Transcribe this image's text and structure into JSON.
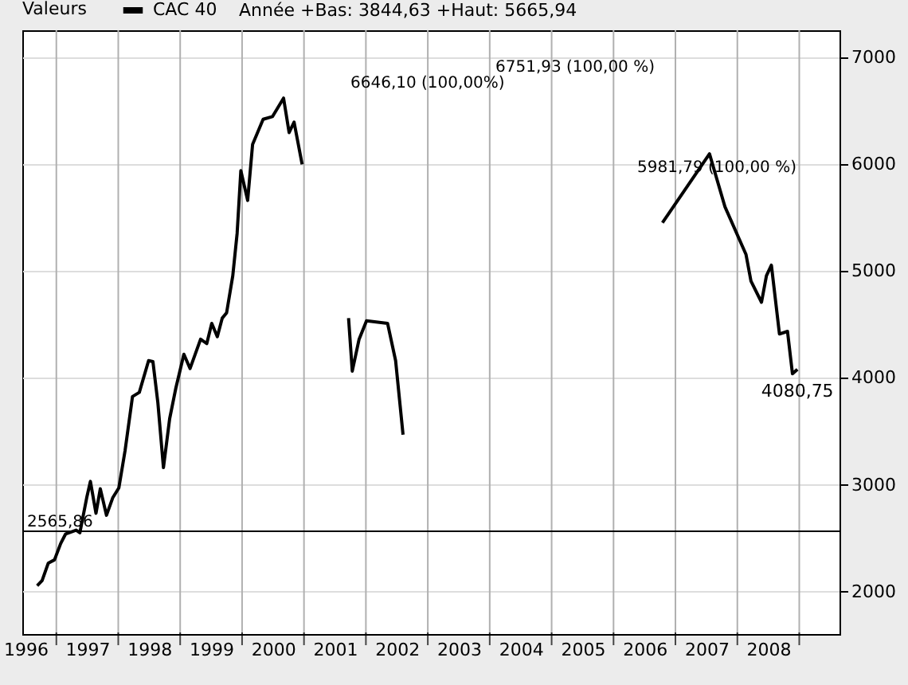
{
  "chart_data": {
    "type": "line",
    "legend_title": "Valeurs",
    "legend": "top left",
    "annotations": [
      "Année +Bas: 3844,63 +Haut: 5665,94",
      "6646,10 (100,00%)",
      "6751,93 (100,00 %)",
      "5981,79 (100,00 %)"
    ],
    "series": [
      {
        "name": "CAC 40",
        "color": "#000000",
        "x": [
          1996.69,
          1996.77,
          1996.87,
          1996.97,
          1997.07,
          1997.15,
          1997.32,
          1997.38,
          1997.49,
          1997.55,
          1997.64,
          1997.71,
          1997.81,
          1997.91,
          1998.01,
          1998.11,
          1998.23,
          1998.34,
          1998.49,
          1998.56,
          1998.64,
          1998.73,
          1998.83,
          1998.93,
          1999.06,
          1999.16,
          1999.33,
          1999.43,
          1999.51,
          1999.6,
          1999.68,
          1999.75,
          1999.85,
          1999.92,
          1999.98,
          2000.09,
          2000.17,
          2000.34,
          2000.49,
          2000.67,
          2000.76,
          2000.84,
          2000.97,
          2001.2,
          2001.72,
          2001.78,
          2001.89,
          2002.01,
          2002.35,
          2002.48,
          2002.6,
          2003.0,
          2006.79,
          2007.55,
          2007.8,
          2008.14,
          2008.22,
          2008.39,
          2008.47,
          2008.55,
          2008.68,
          2008.81,
          2008.89,
          2008.97
        ],
        "values": [
          2055,
          2104,
          2268,
          2298,
          2451,
          2541,
          2576,
          2551,
          2878,
          3032,
          2734,
          2963,
          2715,
          2878,
          2972,
          3320,
          3826,
          3865,
          4162,
          4153,
          3767,
          3161,
          3618,
          3905,
          4222,
          4088,
          4362,
          4322,
          4511,
          4386,
          4560,
          4609,
          4957,
          5353,
          5939,
          5661,
          6186,
          6420,
          6445,
          6618,
          6296,
          6394,
          5999,
          null,
          4560,
          4064,
          4362,
          4534,
          4511,
          4162,
          3469,
          null,
          5452,
          6097,
          5601,
          5155,
          4906,
          4708,
          4957,
          5055,
          4411,
          4436,
          4039,
          4080.75
        ],
        "value_labels": [
          null,
          null,
          null,
          null,
          null,
          null,
          null,
          null,
          null,
          null,
          null,
          null,
          null,
          null,
          null,
          null,
          null,
          null,
          null,
          null,
          null,
          null,
          null,
          null,
          null,
          null,
          null,
          null,
          null,
          null,
          null,
          null,
          null,
          null,
          null,
          null,
          null,
          null,
          null,
          null,
          null,
          null,
          null,
          null,
          null,
          null,
          null,
          null,
          null,
          null,
          null,
          null,
          null,
          null,
          null,
          null,
          null,
          null,
          null,
          null,
          null,
          null,
          null,
          "4080,75"
        ]
      }
    ],
    "xlim": [
      1996.45,
      2009.65
    ],
    "xticks": [
      {
        "value": 1996.5,
        "label": "1996"
      },
      {
        "value": 1997,
        "label": null
      },
      {
        "value": 1997.5,
        "label": "1997"
      },
      {
        "value": 1998,
        "label": null
      },
      {
        "value": 1998.5,
        "label": "1998"
      },
      {
        "value": 1999,
        "label": null
      },
      {
        "value": 1999.5,
        "label": "1999"
      },
      {
        "value": 2000,
        "label": null
      },
      {
        "value": 2000.5,
        "label": "2000"
      },
      {
        "value": 2001,
        "label": null
      },
      {
        "value": 2001.5,
        "label": "2001"
      },
      {
        "value": 2002,
        "label": null
      },
      {
        "value": 2002.5,
        "label": "2002"
      },
      {
        "value": 2003,
        "label": null
      },
      {
        "value": 2003.5,
        "label": "2003"
      },
      {
        "value": 2004,
        "label": null
      },
      {
        "value": 2004.5,
        "label": "2004"
      },
      {
        "value": 2005,
        "label": null
      },
      {
        "value": 2005.5,
        "label": "2005"
      },
      {
        "value": 2006,
        "label": null
      },
      {
        "value": 2006.5,
        "label": "2006"
      },
      {
        "value": 2007,
        "label": null
      },
      {
        "value": 2007.5,
        "label": "2007"
      },
      {
        "value": 2008,
        "label": null
      },
      {
        "value": 2008.5,
        "label": "2008"
      },
      {
        "value": 2009,
        "label": null
      }
    ],
    "ylim": [
      1604,
      7253
    ],
    "yticks": [
      2000,
      3000,
      4000,
      5000,
      6000,
      7000
    ],
    "grid": true,
    "marker": "none",
    "line_style": "solid",
    "ref_lines": [
      {
        "axis": "y",
        "value": 2565.86,
        "label": "2565,86",
        "color": "#000000"
      }
    ]
  }
}
